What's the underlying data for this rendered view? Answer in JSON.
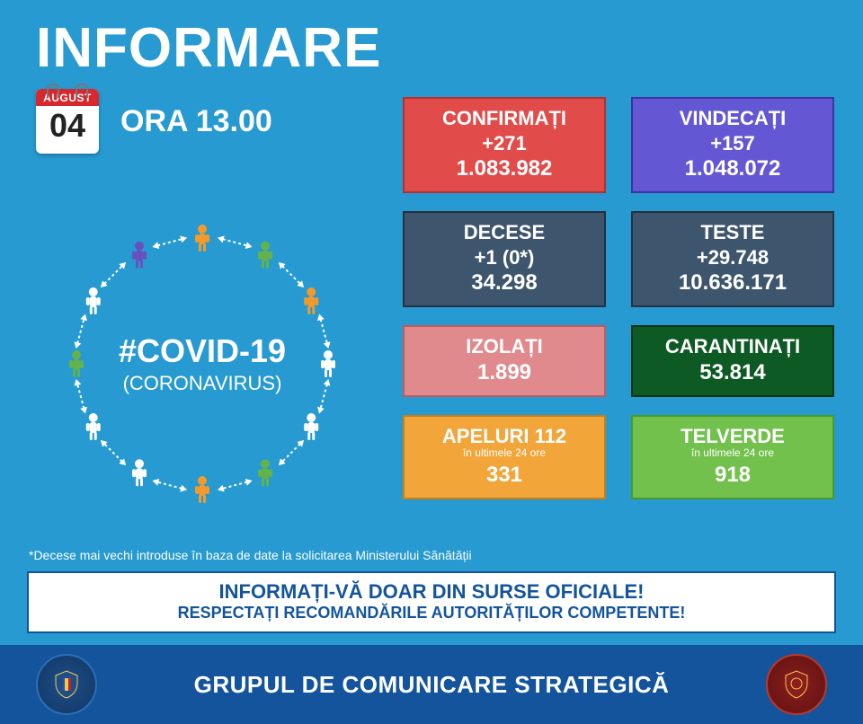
{
  "title": "INFORMARE",
  "date": {
    "month": "AUGUST",
    "day": "04"
  },
  "time_label": "ORA 13.00",
  "hashtag": {
    "main": "#COVID-19",
    "sub": "(CORONAVIRUS)"
  },
  "circle_people_colors": [
    "#f39a2b",
    "#64b24c",
    "#f39a2b",
    "#ffffff",
    "#ffffff",
    "#64b24c",
    "#f39a2b",
    "#ffffff",
    "#ffffff",
    "#64b24c",
    "#ffffff",
    "#6a4fc0"
  ],
  "arrow_color": "#ffffff",
  "boxes": [
    {
      "label": "CONFIRMAȚI",
      "delta": "+271",
      "total": "1.083.982",
      "bg": "#e14b4a",
      "border": "#b23231",
      "text": "#ffffff"
    },
    {
      "label": "VINDECAȚI",
      "delta": "+157",
      "total": "1.048.072",
      "bg": "#6457d4",
      "border": "#3c32a0",
      "text": "#ffffff"
    },
    {
      "label": "DECESE",
      "delta": "+1 (0*)",
      "total": "34.298",
      "bg": "#3e566d",
      "border": "#24313e",
      "text": "#ffffff"
    },
    {
      "label": "TESTE",
      "delta": "+29.748",
      "total": "10.636.171",
      "bg": "#3e566d",
      "border": "#24313e",
      "text": "#ffffff"
    },
    {
      "label": "IZOLAȚI",
      "delta": "",
      "total": "1.899",
      "bg": "#e08a8e",
      "border": "#c05a5f",
      "text": "#ffffff"
    },
    {
      "label": "CARANTINAȚI",
      "delta": "",
      "total": "53.814",
      "bg": "#0d5a24",
      "border": "#053413",
      "text": "#ffffff"
    },
    {
      "label": "APELURI 112",
      "sub": "în ultimele 24 ore",
      "total": "331",
      "bg": "#f2a538",
      "border": "#c77f15",
      "text": "#ffffff"
    },
    {
      "label": "TELVERDE",
      "sub": "în ultimele 24 ore",
      "total": "918",
      "bg": "#72c14c",
      "border": "#4d9a2b",
      "text": "#ffffff"
    }
  ],
  "footnote": "*Decese mai vechi introduse în baza de date la solicitarea Ministerului Sănătății",
  "banner": {
    "line1": "INFORMAȚI-VĂ DOAR DIN SURSE OFICIALE!",
    "line2": "RESPECTAȚI RECOMANDĂRILE AUTORITĂȚILOR COMPETENTE!"
  },
  "footer_text": "GRUPUL DE COMUNICARE STRATEGICĂ",
  "colors": {
    "page_bg": "#269ad1",
    "footer_bg": "#14549c",
    "banner_border": "#14549c"
  }
}
